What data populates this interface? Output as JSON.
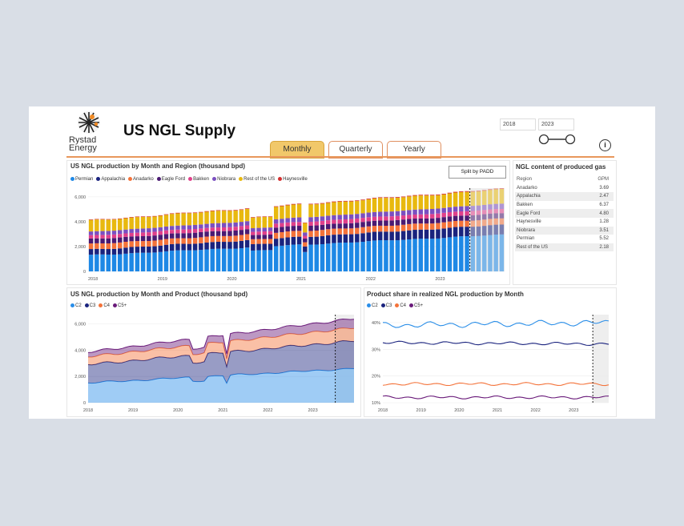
{
  "header": {
    "logo_text_1": "Rystad",
    "logo_text_2": "Energy",
    "title": "US NGL Supply"
  },
  "tabs": [
    {
      "label": "Monthly",
      "active": true
    },
    {
      "label": "Quarterly",
      "active": false
    },
    {
      "label": "Yearly",
      "active": false
    }
  ],
  "year_range": {
    "start": "2018",
    "end": "2023"
  },
  "info_icon": "i",
  "region_panel": {
    "title": "US NGL production by Month and Region (thousand bpd)",
    "split_button": "Split by PADD"
  },
  "product_panel": {
    "title": "US NGL production by Month and Product (thousand bpd)"
  },
  "share_panel": {
    "title": "Product share in realized NGL production by Month"
  },
  "gpm_table": {
    "title": "NGL content of produced gas",
    "headers": [
      "Region",
      "GPM"
    ],
    "rows": [
      [
        "Anadarko",
        "3.69"
      ],
      [
        "Appalachia",
        "2.47"
      ],
      [
        "Bakken",
        "6.37"
      ],
      [
        "Eagle Ford",
        "4.80"
      ],
      [
        "Haynesville",
        "1.28"
      ],
      [
        "Niobrara",
        "3.51"
      ],
      [
        "Permian",
        "5.52"
      ],
      [
        "Rest of the US",
        "2.18"
      ]
    ]
  },
  "colors": {
    "Permian": "#1e88e5",
    "Appalachia": "#1a237e",
    "Anadarko": "#f4733a",
    "Eagle Ford": "#4a1a72",
    "Bakken": "#e0408a",
    "Niobrara": "#7b4fc0",
    "Rest of the US": "#e8b90f",
    "Haynesville": "#d32f2f",
    "C2": "#2a8ee8",
    "C3": "#1a237e",
    "C4": "#f4733a",
    "C5+": "#6a1b7a"
  },
  "chart_data": [
    {
      "type": "bar",
      "stacked": true,
      "title": "US NGL production by Month and Region (thousand bpd)",
      "x_ticks": [
        "2018",
        "2019",
        "2020",
        "2021",
        "2022",
        "2023"
      ],
      "y_ticks": [
        "0",
        "2,000",
        "4,000",
        "6,000"
      ],
      "ylim": [
        0,
        6700
      ],
      "x_range": [
        "2018-01",
        "2023-12"
      ],
      "forecast_from": "2023-07",
      "series": [
        {
          "name": "Permian",
          "start": 1300,
          "end": 2950
        },
        {
          "name": "Appalachia",
          "start": 450,
          "end": 800
        },
        {
          "name": "Anadarko",
          "start": 450,
          "end": 500
        },
        {
          "name": "Eagle Ford",
          "start": 400,
          "end": 420
        },
        {
          "name": "Bakken",
          "start": 280,
          "end": 350
        },
        {
          "name": "Niobrara",
          "start": 300,
          "end": 420
        },
        {
          "name": "Rest of the US",
          "start": 900,
          "end": 1150
        },
        {
          "name": "Haynesville",
          "start": 40,
          "end": 60
        }
      ]
    },
    {
      "type": "area",
      "stacked": true,
      "title": "US NGL production by Month and Product (thousand bpd)",
      "x_ticks": [
        "2018",
        "2019",
        "2020",
        "2021",
        "2022",
        "2023"
      ],
      "y_ticks": [
        "0",
        "2,000",
        "4,000",
        "6,000"
      ],
      "ylim": [
        0,
        6700
      ],
      "x_range": [
        "2018-01",
        "2023-12"
      ],
      "forecast_from": "2023-07",
      "series": [
        {
          "name": "C2",
          "start": 1500,
          "end": 2600
        },
        {
          "name": "C3",
          "start": 1400,
          "end": 2100
        },
        {
          "name": "C4",
          "start": 600,
          "end": 1000
        },
        {
          "name": "C5+",
          "start": 350,
          "end": 700
        }
      ]
    },
    {
      "type": "line",
      "title": "Product share in realized NGL production by Month",
      "x_ticks": [
        "2018",
        "2019",
        "2020",
        "2021",
        "2022",
        "2023"
      ],
      "y_ticks": [
        "10%",
        "20%",
        "30%",
        "40%"
      ],
      "ylim": [
        10,
        43
      ],
      "x_range": [
        "2018-01",
        "2023-12"
      ],
      "forecast_from": "2023-07",
      "series": [
        {
          "name": "C2",
          "start": 39,
          "end": 40
        },
        {
          "name": "C3",
          "start": 32.5,
          "end": 32
        },
        {
          "name": "C4",
          "start": 17,
          "end": 17
        },
        {
          "name": "C5+",
          "start": 12,
          "end": 12
        }
      ]
    }
  ]
}
